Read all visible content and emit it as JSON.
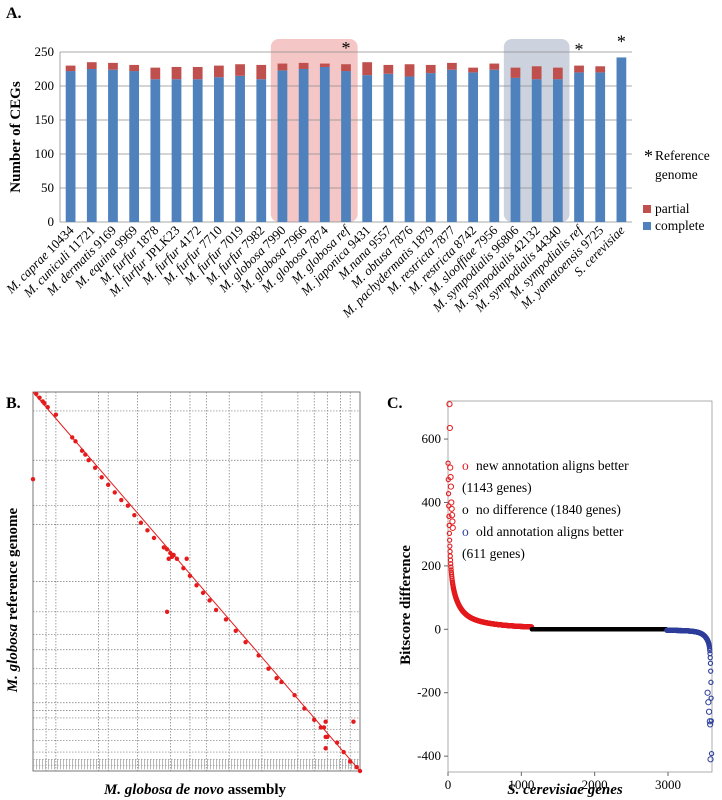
{
  "panels": {
    "a": "A.",
    "b": "B.",
    "c": "C."
  },
  "chart_data": [
    {
      "type": "bar",
      "stacked": true,
      "ylabel": "Number of CEGs",
      "ylim": [
        0,
        250
      ],
      "yticks": [
        "0",
        "50",
        "100",
        "150",
        "200",
        "250"
      ],
      "grid": true,
      "categories": [
        "M. caprae 10434",
        "M. cuniculi 11721",
        "M. dermatis 9169",
        "M. equina 9969",
        "M. furfur 1878",
        "M. furfur JPLK23",
        "M. furfur 4172",
        "M. furfur 7710",
        "M. furfur 7019",
        "M. furfur 7982",
        "M. globosa 7990",
        "M. globosa 7966",
        "M. globosa 7874",
        "M. globosa ref",
        "M. japonica 9431",
        "M.nana 9557",
        "M. obtusa 7876",
        "M. pachydermatis 1879",
        "M. restricta 7877",
        "M. restricta 8742",
        "M. slooffiae 7956",
        "M. sympodialis 96806",
        "M. sympodialis 42132",
        "M. sympodialis 44340",
        "M. sympodialis ref",
        "M. yamatoensis 9725",
        "S. cerevisiae"
      ],
      "series": [
        {
          "name": "complete",
          "color": "#4f81bd",
          "values": [
            222,
            225,
            224,
            222,
            210,
            210,
            210,
            213,
            215,
            210,
            223,
            225,
            228,
            222,
            216,
            218,
            214,
            219,
            224,
            220,
            224,
            212,
            210,
            210,
            220,
            220,
            242
          ]
        },
        {
          "name": "partial",
          "color": "#c0504d",
          "values": [
            8,
            10,
            10,
            9,
            17,
            18,
            18,
            17,
            17,
            21,
            10,
            9,
            5,
            10,
            19,
            13,
            18,
            12,
            10,
            7,
            9,
            15,
            19,
            17,
            10,
            9,
            0
          ]
        }
      ],
      "highlights": [
        {
          "from": "M. globosa 7990",
          "to": "M. globosa ref",
          "color": "#f4c7c6"
        },
        {
          "from": "M. sympodialis 96806",
          "to": "M. sympodialis 44340",
          "color": "#cdd3de"
        }
      ],
      "reference_marks": [
        "M. globosa ref",
        "M. sympodialis ref",
        "S. cerevisiae"
      ],
      "reference_legend": {
        "symbol": "*",
        "text": [
          "Reference",
          "genome"
        ]
      }
    },
    {
      "type": "scatter",
      "title": "",
      "xlabel_italic": "M. globosa de novo",
      "xlabel_rest": " assembly",
      "ylabel_italic": "M. globosa",
      "ylabel_rest": " reference genome",
      "color": "#e41a1c",
      "points": [
        [
          0.01,
          0.005
        ],
        [
          0.02,
          0.015
        ],
        [
          0.03,
          0.025
        ],
        [
          0.035,
          0.03
        ],
        [
          0.045,
          0.04
        ],
        [
          0.07,
          0.06
        ],
        [
          0.12,
          0.12
        ],
        [
          0.13,
          0.13
        ],
        [
          0.15,
          0.155
        ],
        [
          0.16,
          0.165
        ],
        [
          0.17,
          0.18
        ],
        [
          0.19,
          0.2
        ],
        [
          0.21,
          0.225
        ],
        [
          0.23,
          0.245
        ],
        [
          0.25,
          0.265
        ],
        [
          0.27,
          0.285
        ],
        [
          0.29,
          0.3
        ],
        [
          0.31,
          0.325
        ],
        [
          0.33,
          0.345
        ],
        [
          0.35,
          0.365
        ],
        [
          0.37,
          0.385
        ],
        [
          0.4,
          0.41
        ],
        [
          0.41,
          0.415
        ],
        [
          0.42,
          0.425
        ],
        [
          0.43,
          0.43
        ],
        [
          0.415,
          0.44
        ],
        [
          0.425,
          0.435
        ],
        [
          0.44,
          0.44
        ],
        [
          0.46,
          0.465
        ],
        [
          0.48,
          0.485
        ],
        [
          0.5,
          0.51
        ],
        [
          0.52,
          0.53
        ],
        [
          0.54,
          0.55
        ],
        [
          0.56,
          0.575
        ],
        [
          0.59,
          0.6
        ],
        [
          0.62,
          0.63
        ],
        [
          0.65,
          0.66
        ],
        [
          0.69,
          0.695
        ],
        [
          0.72,
          0.73
        ],
        [
          0.745,
          0.755
        ],
        [
          0.76,
          0.765
        ],
        [
          0.8,
          0.8
        ],
        [
          0.83,
          0.835
        ],
        [
          0.86,
          0.865
        ],
        [
          0.88,
          0.885
        ],
        [
          0.9,
          0.91
        ],
        [
          0.93,
          0.925
        ],
        [
          0.95,
          0.95
        ],
        [
          0.97,
          0.975
        ],
        [
          0.99,
          0.99
        ],
        [
          1.0,
          1.0
        ],
        [
          0.0,
          0.23
        ],
        [
          0.41,
          0.58
        ],
        [
          0.47,
          0.44
        ],
        [
          0.895,
          0.87
        ],
        [
          0.895,
          0.91
        ],
        [
          0.895,
          0.94
        ],
        [
          0.98,
          0.87
        ],
        [
          0.89,
          0.885
        ]
      ],
      "vgrid": [
        0.04,
        0.07,
        0.2,
        0.23,
        0.32,
        0.42,
        0.48,
        0.53,
        0.6,
        0.7,
        0.81,
        0.86,
        0.9,
        0.94,
        0.97
      ],
      "hgrid": [
        0.05,
        0.18,
        0.3,
        0.35,
        0.5,
        0.58,
        0.64,
        0.68,
        0.73,
        0.77,
        0.82,
        0.84,
        0.86,
        0.89,
        0.92,
        0.95,
        0.97,
        0.985
      ]
    },
    {
      "type": "scatter",
      "xlabel": "S. cerevisiae genes",
      "ylabel": "Bitscore difference",
      "xlim": [
        0,
        3600
      ],
      "ylim": [
        -450,
        720
      ],
      "xticks": [
        0,
        1000,
        2000,
        3000
      ],
      "yticks": [
        -400,
        -200,
        0,
        200,
        400,
        600
      ],
      "legend": [
        {
          "symbol": "o",
          "color": "#e41a1c",
          "text": [
            "new annotation aligns better",
            "(1143 genes)"
          ]
        },
        {
          "symbol": "o",
          "color": "#000000",
          "text": [
            "no difference (1840 genes)"
          ]
        },
        {
          "symbol": "o",
          "color": "#2e3e9b",
          "text": [
            "old annotation aligns better",
            "(611 genes)"
          ]
        }
      ],
      "series": [
        {
          "name": "new annotation aligns better",
          "count": 1143,
          "color": "#e41a1c",
          "outliers": [
            [
              20,
              710
            ],
            [
              25,
              635
            ],
            [
              30,
              510
            ],
            [
              35,
              480
            ],
            [
              40,
              450
            ],
            [
              45,
              400
            ],
            [
              50,
              380
            ],
            [
              55,
              360
            ],
            [
              60,
              340
            ],
            [
              65,
              320
            ]
          ]
        },
        {
          "name": "no difference",
          "count": 1840,
          "color": "#000000"
        },
        {
          "name": "old annotation aligns better",
          "count": 611,
          "color": "#2e3e9b",
          "outliers": [
            [
              3540,
              -200
            ],
            [
              3550,
              -230
            ],
            [
              3560,
              -260
            ],
            [
              3570,
              -290
            ],
            [
              3575,
              -300
            ],
            [
              3580,
              -410
            ]
          ]
        }
      ]
    }
  ]
}
